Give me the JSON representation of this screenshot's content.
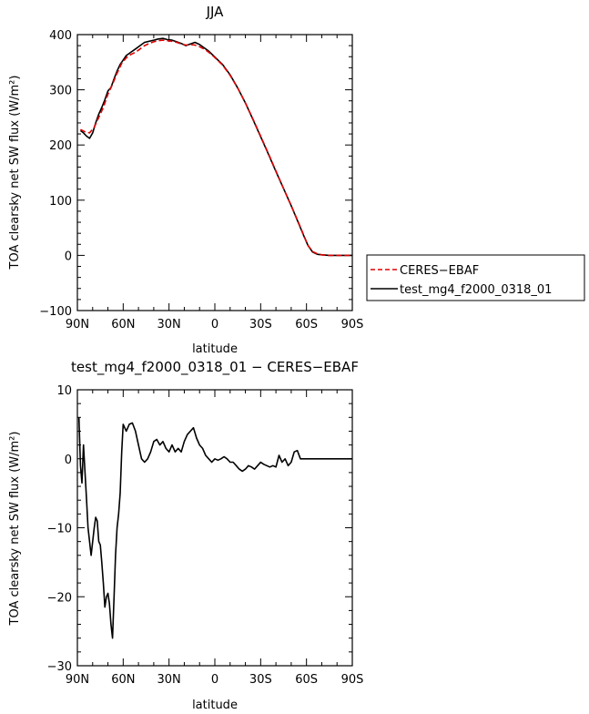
{
  "chart_data": [
    {
      "type": "line",
      "title": "JJA",
      "xlabel": "latitude",
      "ylabel": "TOA clearsky net SW flux (W/m²)",
      "xlim": [
        90,
        -90
      ],
      "ylim": [
        -100,
        400
      ],
      "x_ticks": [
        90,
        60,
        30,
        0,
        -30,
        -60,
        -90
      ],
      "x_tick_labels": [
        "90N",
        "60N",
        "30N",
        "0",
        "30S",
        "60S",
        "90S"
      ],
      "y_ticks": [
        -100,
        0,
        100,
        200,
        300,
        400
      ],
      "y_tick_labels": [
        "−100",
        "0",
        "100",
        "200",
        "300",
        "400"
      ],
      "legend": {
        "placement": "right-outside",
        "entries": [
          "CERES−EBAF",
          "test_mg4_f2000_0318_01"
        ]
      },
      "series": [
        {
          "name": "CERES−EBAF",
          "color": "#e00000",
          "dash": "dashed",
          "x": [
            88,
            85,
            82,
            79,
            76,
            73,
            70,
            67,
            64,
            61,
            58,
            55,
            52,
            49,
            46,
            43,
            40,
            37,
            34,
            31,
            28,
            25,
            22,
            19,
            16,
            13,
            10,
            7,
            4,
            1,
            -2,
            -5,
            -10,
            -15,
            -20,
            -25,
            -30,
            -35,
            -40,
            -45,
            -50,
            -55,
            -58,
            -61,
            -64,
            -67,
            -70,
            -75,
            -80,
            -85,
            -90
          ],
          "y": [
            228,
            224,
            222,
            232,
            250,
            268,
            292,
            310,
            330,
            348,
            358,
            364,
            368,
            374,
            380,
            384,
            387,
            389,
            390,
            389,
            388,
            386,
            383,
            381,
            382,
            381,
            378,
            374,
            368,
            361,
            353,
            345,
            326,
            303,
            276,
            247,
            216,
            185,
            153,
            121,
            90,
            58,
            38,
            18,
            7,
            3,
            1,
            0,
            0,
            0,
            0
          ]
        },
        {
          "name": "test_mg4_f2000_0318_01",
          "color": "#000000",
          "dash": "solid",
          "x": [
            88,
            86,
            84,
            82,
            80,
            78,
            76,
            74,
            72,
            70,
            68,
            66,
            64,
            62,
            60,
            58,
            55,
            52,
            49,
            46,
            43,
            40,
            37,
            34,
            31,
            28,
            25,
            22,
            19,
            16,
            13,
            10,
            7,
            4,
            1,
            -2,
            -5,
            -10,
            -15,
            -20,
            -25,
            -30,
            -35,
            -40,
            -45,
            -50,
            -55,
            -58,
            -61,
            -64,
            -67,
            -70,
            -75,
            -80,
            -85,
            -90
          ],
          "y": [
            226,
            222,
            216,
            212,
            222,
            240,
            256,
            268,
            282,
            298,
            304,
            320,
            334,
            346,
            354,
            362,
            368,
            374,
            380,
            386,
            388,
            390,
            392,
            393,
            391,
            390,
            387,
            384,
            380,
            383,
            386,
            382,
            376,
            370,
            362,
            354,
            346,
            327,
            303,
            276,
            246,
            215,
            184,
            152,
            121,
            90,
            57,
            37,
            18,
            6,
            2,
            1,
            0,
            0,
            0,
            0
          ]
        }
      ]
    },
    {
      "type": "line",
      "title": "test_mg4_f2000_0318_01 − CERES−EBAF",
      "xlabel": "latitude",
      "ylabel": "TOA clearsky net SW flux (W/m²)",
      "xlim": [
        90,
        -90
      ],
      "ylim": [
        -30,
        10
      ],
      "x_ticks": [
        90,
        60,
        30,
        0,
        -30,
        -60,
        -90
      ],
      "x_tick_labels": [
        "90N",
        "60N",
        "30N",
        "0",
        "30S",
        "60S",
        "90S"
      ],
      "y_ticks": [
        -30,
        -20,
        -10,
        0,
        10
      ],
      "y_tick_labels": [
        "−30",
        "−20",
        "−10",
        "0",
        "10"
      ],
      "series": [
        {
          "color": "#000000",
          "dash": "solid",
          "x": [
            89,
            88,
            87,
            86,
            85,
            84,
            83,
            82,
            81,
            80,
            79,
            78,
            77,
            76,
            75,
            74,
            73,
            72,
            71,
            70,
            69,
            68,
            67,
            66,
            65,
            64,
            63,
            62,
            61,
            60,
            58,
            56,
            54,
            52,
            50,
            48,
            46,
            44,
            42,
            40,
            38,
            36,
            34,
            32,
            30,
            28,
            26,
            24,
            22,
            20,
            18,
            16,
            14,
            12,
            10,
            8,
            6,
            4,
            2,
            0,
            -2,
            -4,
            -6,
            -8,
            -10,
            -12,
            -14,
            -16,
            -18,
            -20,
            -22,
            -24,
            -26,
            -28,
            -30,
            -32,
            -34,
            -36,
            -38,
            -40,
            -42,
            -44,
            -46,
            -48,
            -50,
            -52,
            -54,
            -56,
            -58,
            -60,
            -62,
            -64,
            -66,
            -68,
            -70,
            -72,
            -74,
            -76,
            -78,
            -80,
            -82,
            -84,
            -86,
            -88,
            -90
          ],
          "y": [
            6,
            -1,
            -3.5,
            2,
            -2,
            -6,
            -10,
            -12,
            -14,
            -12,
            -10,
            -8.5,
            -9,
            -12,
            -12.5,
            -15,
            -18,
            -21.5,
            -20,
            -19.5,
            -21,
            -24,
            -26,
            -20,
            -14,
            -10,
            -8,
            -5,
            1,
            5,
            4,
            5,
            5.2,
            4,
            2,
            0,
            -0.5,
            0,
            1,
            2.5,
            2.8,
            2,
            2.5,
            1.5,
            1,
            2,
            1,
            1.5,
            1,
            2.5,
            3.5,
            4,
            4.5,
            3,
            2,
            1.5,
            0.5,
            0,
            -0.5,
            0,
            -0.2,
            0,
            0.3,
            0,
            -0.5,
            -0.5,
            -1,
            -1.5,
            -1.8,
            -1.5,
            -1,
            -1.2,
            -1.5,
            -1,
            -0.5,
            -0.8,
            -1,
            -1.2,
            -1,
            -1.2,
            0.5,
            -0.5,
            0,
            -1,
            -0.5,
            1,
            1.2,
            0,
            0,
            0,
            0,
            0,
            0,
            0,
            0,
            0,
            0,
            0,
            0,
            0,
            0,
            0,
            0,
            0,
            0
          ]
        }
      ]
    }
  ]
}
